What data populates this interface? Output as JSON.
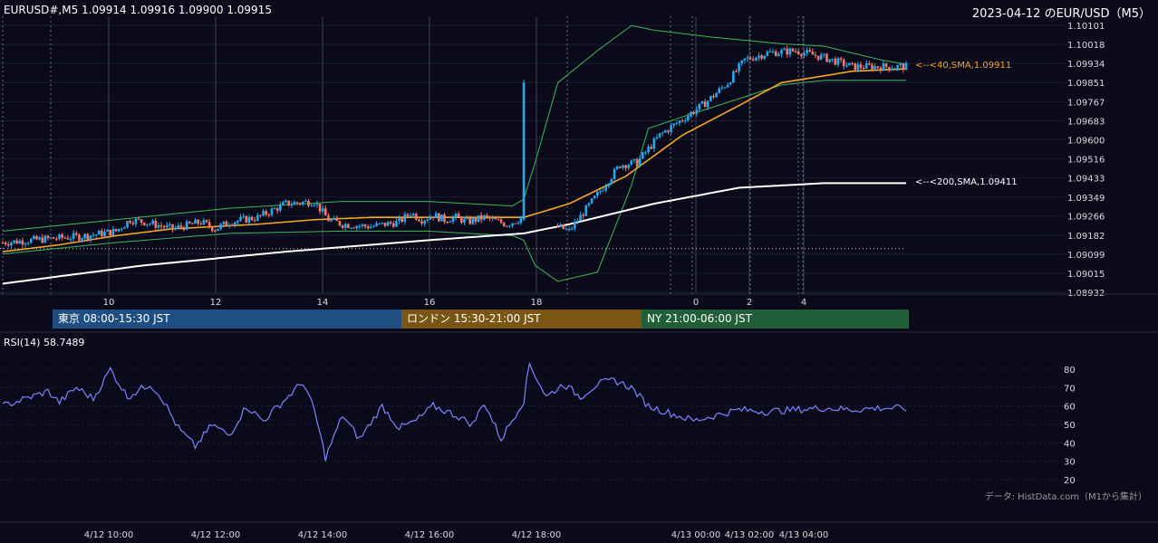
{
  "header": {
    "symbol_quote": "EURUSD#,M5 1.09914 1.09916 1.09900 1.09915",
    "date_title": "2023-04-12 のEUR/USD（M5）"
  },
  "sessions": [
    {
      "label": "東京 08:00-15:30 JST",
      "color": "#1f4e82"
    },
    {
      "label": "ロンドン 15:30-21:00 JST",
      "color": "#7a5514"
    },
    {
      "label": "NY 21:00-06:00 JST",
      "color": "#215f3a"
    }
  ],
  "rsi_panel": {
    "label": "RSI(14) 58.7489"
  },
  "footer": {
    "source_note": "データ: HistData.com（M1から集計）"
  },
  "colors": {
    "background": "#0a0a1a",
    "bull": "#26a9f0",
    "bear": "#f07a6a",
    "sma40": "#f5a623",
    "sma200": "#ffffff",
    "bollinger": "#3db85a",
    "rsi": "#7b85ff"
  },
  "chart_data": [
    {
      "type": "candlestick",
      "x_hour_ticks": [
        "10",
        "12",
        "14",
        "16",
        "18",
        "0",
        "2",
        "4"
      ],
      "y_ticks": [
        "1.10101",
        "1.10018",
        "1.09934",
        "1.09851",
        "1.09767",
        "1.09683",
        "1.09600",
        "1.09516",
        "1.09433",
        "1.09349",
        "1.09266",
        "1.09182",
        "1.09099",
        "1.09015",
        "1.08932"
      ],
      "ylim": [
        1.08932,
        1.10101
      ],
      "sma40_label": "<--<40,SMA,1.09911",
      "sma200_label": "<--<200,SMA,1.09411",
      "sma40_last": 1.09911,
      "sma200_last": 1.09411,
      "reference_level": 1.09123,
      "price_path": [
        [
          0,
          1.0915
        ],
        [
          10,
          1.0916
        ],
        [
          20,
          1.0917
        ],
        [
          30,
          1.0918
        ],
        [
          40,
          1.092
        ],
        [
          45,
          1.0925
        ],
        [
          50,
          1.0924
        ],
        [
          60,
          1.0921
        ],
        [
          70,
          1.0924
        ],
        [
          75,
          1.0921
        ],
        [
          80,
          1.0924
        ],
        [
          90,
          1.0926
        ],
        [
          100,
          1.0932
        ],
        [
          110,
          1.0933
        ],
        [
          115,
          1.0925
        ],
        [
          120,
          1.0923
        ],
        [
          130,
          1.0922
        ],
        [
          140,
          1.0924
        ],
        [
          144,
          1.0928
        ],
        [
          148,
          1.0925
        ],
        [
          152,
          1.0927
        ],
        [
          156,
          1.0925
        ],
        [
          160,
          1.0926
        ],
        [
          164,
          1.0924
        ],
        [
          170,
          1.0926
        ],
        [
          178,
          1.0923
        ],
        [
          182,
          1.0925
        ],
        [
          184,
          1.0928
        ],
        [
          200,
          1.092
        ],
        [
          210,
          1.0936
        ],
        [
          218,
          1.0949
        ],
        [
          224,
          1.095
        ],
        [
          232,
          1.0962
        ],
        [
          248,
          1.0976
        ],
        [
          256,
          1.0985
        ],
        [
          262,
          1.0995
        ],
        [
          270,
          1.0998
        ],
        [
          280,
          1.0999
        ],
        [
          290,
          1.0996
        ],
        [
          300,
          1.0992
        ],
        [
          310,
          1.0992
        ],
        [
          319,
          1.0992
        ]
      ],
      "sma200_path": [
        [
          0,
          1.0897
        ],
        [
          50,
          1.0905
        ],
        [
          100,
          1.0911
        ],
        [
          150,
          1.0916
        ],
        [
          184,
          1.0919
        ],
        [
          200,
          1.0923
        ],
        [
          230,
          1.0932
        ],
        [
          260,
          1.0939
        ],
        [
          290,
          1.0941
        ]
      ],
      "sma40_path": [
        [
          0,
          1.0911
        ],
        [
          20,
          1.0914
        ],
        [
          40,
          1.0918
        ],
        [
          60,
          1.0921
        ],
        [
          90,
          1.0923
        ],
        [
          110,
          1.0925
        ],
        [
          130,
          1.0926
        ],
        [
          150,
          1.0926
        ],
        [
          170,
          1.0926
        ],
        [
          184,
          1.0926
        ],
        [
          200,
          1.0932
        ],
        [
          220,
          1.0944
        ],
        [
          240,
          1.0962
        ],
        [
          260,
          1.0975
        ],
        [
          275,
          1.0985
        ],
        [
          290,
          1.0988
        ],
        [
          300,
          1.099
        ],
        [
          319,
          1.0991
        ]
      ],
      "bb_upper_path": [
        [
          0,
          1.092
        ],
        [
          40,
          1.0925
        ],
        [
          80,
          1.093
        ],
        [
          120,
          1.0933
        ],
        [
          150,
          1.0933
        ],
        [
          180,
          1.0931
        ],
        [
          184,
          1.0934
        ],
        [
          188,
          1.095
        ],
        [
          196,
          1.0985
        ],
        [
          210,
          1.0999
        ],
        [
          222,
          1.101
        ],
        [
          230,
          1.1008
        ],
        [
          250,
          1.1005
        ],
        [
          275,
          1.1002
        ],
        [
          290,
          1.1001
        ],
        [
          310,
          1.0995
        ],
        [
          319,
          1.0993
        ]
      ],
      "bb_lower_path": [
        [
          0,
          1.091
        ],
        [
          40,
          1.0915
        ],
        [
          80,
          1.0919
        ],
        [
          120,
          1.092
        ],
        [
          150,
          1.092
        ],
        [
          180,
          1.0918
        ],
        [
          184,
          1.0916
        ],
        [
          188,
          1.0905
        ],
        [
          196,
          1.0898
        ],
        [
          210,
          1.0902
        ],
        [
          222,
          1.094
        ],
        [
          228,
          1.0965
        ],
        [
          240,
          1.097
        ],
        [
          260,
          1.0978
        ],
        [
          275,
          1.0984
        ],
        [
          290,
          1.0986
        ],
        [
          310,
          1.0986
        ],
        [
          319,
          1.0986
        ]
      ]
    },
    {
      "type": "line",
      "series": [
        {
          "name": "RSI(14)",
          "last": 58.7489
        }
      ],
      "y_ticks": [
        "80",
        "70",
        "60",
        "50",
        "40",
        "30",
        "20"
      ],
      "ylim": [
        20,
        85
      ],
      "x_time_labels": [
        "4/12 10:00",
        "4/12 12:00",
        "4/12 14:00",
        "4/12 16:00",
        "4/12 18:00",
        "4/13 00:00",
        "4/13 02:00",
        "4/13 04:00"
      ],
      "rsi_path": [
        [
          0,
          60
        ],
        [
          8,
          64
        ],
        [
          16,
          68
        ],
        [
          20,
          62
        ],
        [
          26,
          70
        ],
        [
          32,
          64
        ],
        [
          38,
          80
        ],
        [
          44,
          65
        ],
        [
          52,
          72
        ],
        [
          56,
          65
        ],
        [
          62,
          48
        ],
        [
          68,
          38
        ],
        [
          74,
          50
        ],
        [
          80,
          44
        ],
        [
          86,
          60
        ],
        [
          92,
          52
        ],
        [
          100,
          64
        ],
        [
          106,
          73
        ],
        [
          110,
          58
        ],
        [
          114,
          32
        ],
        [
          120,
          55
        ],
        [
          126,
          42
        ],
        [
          134,
          60
        ],
        [
          140,
          48
        ],
        [
          146,
          52
        ],
        [
          152,
          60
        ],
        [
          160,
          55
        ],
        [
          166,
          50
        ],
        [
          170,
          62
        ],
        [
          176,
          42
        ],
        [
          182,
          58
        ],
        [
          184,
          63
        ],
        [
          186,
          83
        ],
        [
          192,
          65
        ],
        [
          198,
          72
        ],
        [
          204,
          65
        ],
        [
          210,
          72
        ],
        [
          216,
          74
        ],
        [
          222,
          70
        ],
        [
          228,
          60
        ],
        [
          236,
          56
        ],
        [
          244,
          52
        ],
        [
          252,
          55
        ],
        [
          260,
          58
        ],
        [
          270,
          57
        ],
        [
          280,
          58
        ],
        [
          290,
          59
        ],
        [
          300,
          58
        ],
        [
          310,
          59
        ],
        [
          319,
          58.7
        ]
      ]
    }
  ]
}
